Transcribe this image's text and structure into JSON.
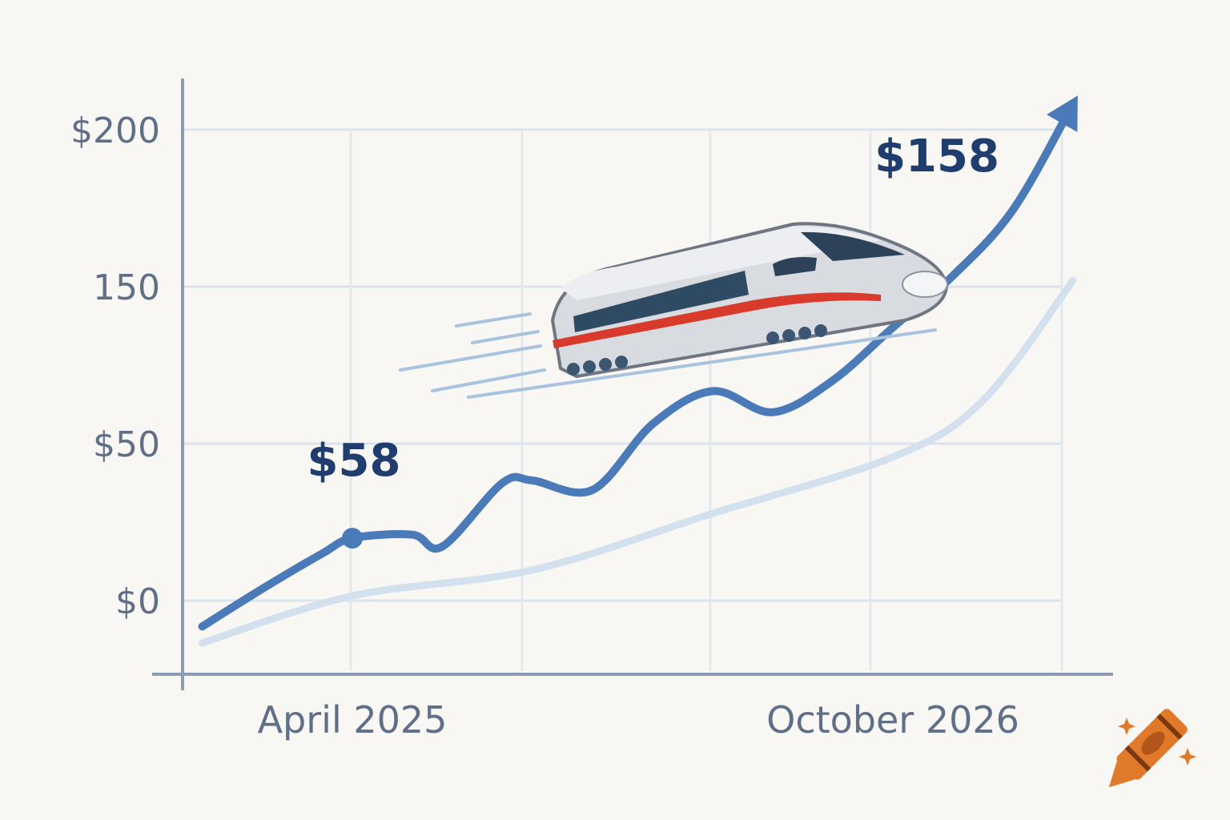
{
  "chart_data": {
    "type": "line",
    "title": "",
    "xlabel": "",
    "ylabel": "",
    "ylim": [
      0,
      200
    ],
    "y_tick_labels": [
      "$0",
      "$50",
      "150",
      "$200"
    ],
    "x_tick_labels": [
      {
        "date": "2025-04",
        "label": "April 2025"
      },
      {
        "date": "2026-10",
        "label": "October 2026"
      }
    ],
    "grid": true,
    "series": [
      {
        "color": "#4a7bb8",
        "arrow_end": true,
        "points": [
          [
            "2024-11",
            -11
          ],
          [
            "2025-01",
            5
          ],
          [
            "2025-03",
            20
          ],
          [
            "2025-04",
            26.5
          ],
          [
            "2025-06",
            28
          ],
          [
            "2025-07",
            23
          ],
          [
            "2025-09",
            50
          ],
          [
            "2025-10",
            51
          ],
          [
            "2025-12",
            47
          ],
          [
            "2026-02",
            75
          ],
          [
            "2026-04",
            89
          ],
          [
            "2026-06",
            80
          ],
          [
            "2026-08",
            93.5
          ],
          [
            "2026-10",
            116
          ],
          [
            "2026-12",
            138
          ],
          [
            "2027-02",
            166
          ],
          [
            "2027-04",
            211
          ]
        ]
      },
      {
        "color": "#d3e0ee",
        "arrow_end": false,
        "points": [
          [
            "2024-11",
            -18
          ],
          [
            "2025-04",
            2
          ],
          [
            "2025-10",
            13
          ],
          [
            "2026-04",
            37
          ],
          [
            "2026-10",
            61
          ],
          [
            "2027-01",
            85
          ],
          [
            "2027-04",
            136
          ]
        ]
      }
    ],
    "annotations": [
      {
        "text": "$58",
        "date": "2025-04"
      },
      {
        "text": "$158",
        "date": "2026-12"
      }
    ],
    "illustration": "high-speed-train",
    "logo": "crayon-icon"
  }
}
